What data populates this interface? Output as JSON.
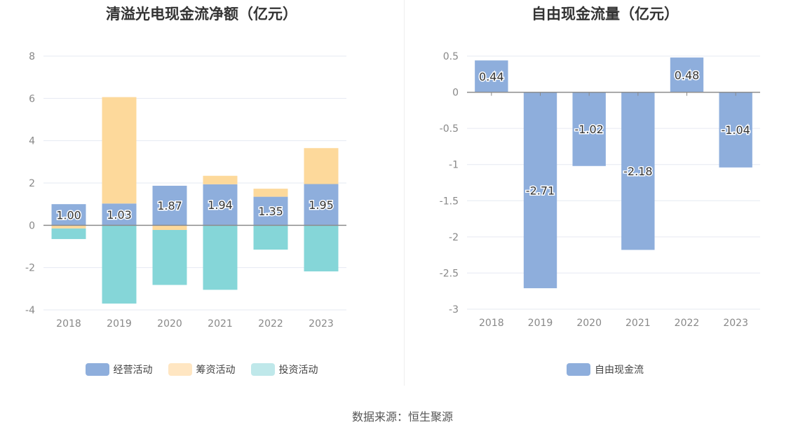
{
  "chart_data": [
    {
      "type": "bar",
      "stacked": true,
      "title": "清溢光电现金流净额（亿元）",
      "categories": [
        "2018",
        "2019",
        "2020",
        "2021",
        "2022",
        "2023"
      ],
      "ylim": [
        -4,
        8
      ],
      "yticks": [
        -4,
        -2,
        0,
        2,
        4,
        6,
        8
      ],
      "series": [
        {
          "name": "经营活动",
          "color": "#8eaedc",
          "values": [
            1.0,
            1.03,
            1.87,
            1.94,
            1.35,
            1.95
          ],
          "labels": [
            "1.00",
            "1.03",
            "1.87",
            "1.94",
            "1.35",
            "1.95"
          ]
        },
        {
          "name": "筹资活动",
          "color": "#fdd99b",
          "values": [
            -0.15,
            5.03,
            -0.22,
            0.4,
            0.38,
            1.7
          ]
        },
        {
          "name": "投资活动",
          "color": "#85d6d8",
          "values": [
            -0.5,
            -3.7,
            -2.6,
            -3.05,
            -1.15,
            -2.18
          ]
        }
      ],
      "legend_colors": [
        "#8eaedc",
        "#ffe6c2",
        "#bfe8ea"
      ],
      "grid": true,
      "legend_position": "bottom"
    },
    {
      "type": "bar",
      "title": "自由现金流量（亿元）",
      "categories": [
        "2018",
        "2019",
        "2020",
        "2021",
        "2022",
        "2023"
      ],
      "ylim": [
        -3,
        0.5
      ],
      "yticks": [
        "0.5",
        "0",
        "-0.5",
        "-1",
        "-1.5",
        "-2",
        "-2.5",
        "-3"
      ],
      "series": [
        {
          "name": "自由现金流",
          "color": "#8eaedc",
          "values": [
            0.44,
            -2.71,
            -1.02,
            -2.18,
            0.48,
            -1.04
          ],
          "labels": [
            "0.44",
            "-2.71",
            "-1.02",
            "-2.18",
            "0.48",
            "-1.04"
          ]
        }
      ],
      "grid": true,
      "legend_position": "bottom"
    }
  ],
  "footer": {
    "source": "数据来源：恒生聚源"
  }
}
